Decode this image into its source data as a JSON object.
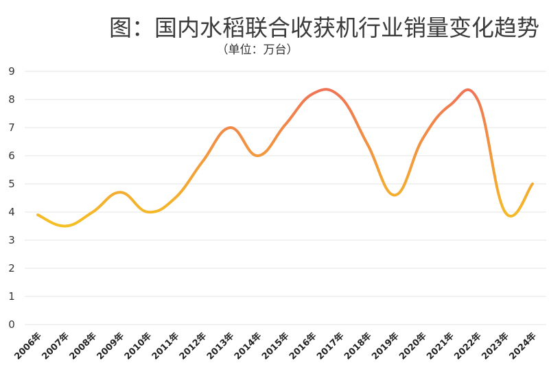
{
  "chart_data": {
    "type": "line",
    "title": "图：国内水稻联合收获机行业销量变化趋势",
    "subtitle": "（单位：万台）",
    "x": [
      "2006年",
      "2007年",
      "2008年",
      "2009年",
      "2010年",
      "2011年",
      "2012年",
      "2013年",
      "2014年",
      "2015年",
      "2016年",
      "2017年",
      "2018年",
      "2019年",
      "2020年",
      "2021年",
      "2022年",
      "2023年",
      "2024年"
    ],
    "series": [
      {
        "values": [
          3.9,
          3.5,
          4.0,
          4.7,
          4.0,
          4.5,
          5.8,
          7.0,
          6.0,
          7.1,
          8.2,
          8.1,
          6.4,
          4.6,
          6.6,
          7.8,
          8.0,
          4.0,
          5.0
        ]
      }
    ],
    "ylim": [
      0,
      9
    ],
    "yticks": [
      "0",
      "1",
      "2",
      "3",
      "4",
      "5",
      "6",
      "7",
      "8",
      "9"
    ],
    "grid": true,
    "legend": "none",
    "colors": {
      "low": "#f5c023",
      "high": "#ee6a5c",
      "grid": "#e6e6e6"
    }
  }
}
